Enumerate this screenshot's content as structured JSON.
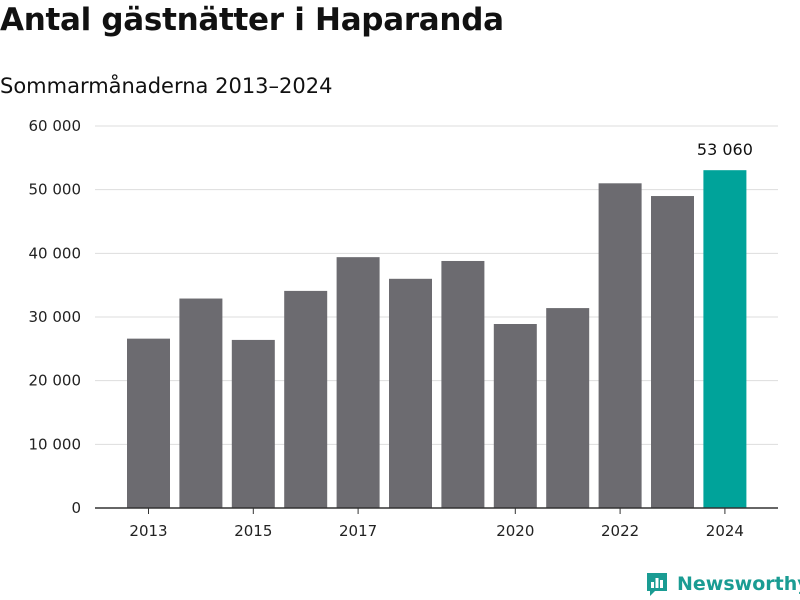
{
  "header": {
    "title": "Antal gästnätter i Haparanda",
    "subtitle": "Sommarmånaderna 2013–2024"
  },
  "branding": {
    "name": "Newsworthy",
    "icon": "bar-chart-bubble-icon"
  },
  "colors": {
    "bar": "#6c6b70",
    "highlight": "#00a39a",
    "grid": "#dddddd",
    "axis": "#333333",
    "brand": "#1a9c93"
  },
  "chart_data": {
    "type": "bar",
    "title": "Antal gästnätter i Haparanda",
    "subtitle": "Sommarmånaderna 2013–2024",
    "categories": [
      "2013",
      "2014",
      "2015",
      "2016",
      "2017",
      "2018",
      "2019",
      "2020",
      "2021",
      "2022",
      "2023",
      "2024"
    ],
    "values": [
      26600,
      32900,
      26400,
      34100,
      39400,
      36000,
      38800,
      28900,
      31400,
      51000,
      49000,
      53060
    ],
    "x_tick_labels": [
      "2013",
      "2015",
      "2017",
      "2020",
      "2022",
      "2024"
    ],
    "y_ticks": [
      0,
      10000,
      20000,
      30000,
      40000,
      50000,
      60000
    ],
    "y_tick_labels": [
      "0",
      "10 000",
      "20 000",
      "30 000",
      "40 000",
      "50 000",
      "60 000"
    ],
    "ylim": [
      0,
      60000
    ],
    "highlight_category": "2024",
    "data_labels": [
      {
        "category": "2024",
        "text": "53 060"
      }
    ],
    "grid": true,
    "xlabel": "",
    "ylabel": ""
  }
}
